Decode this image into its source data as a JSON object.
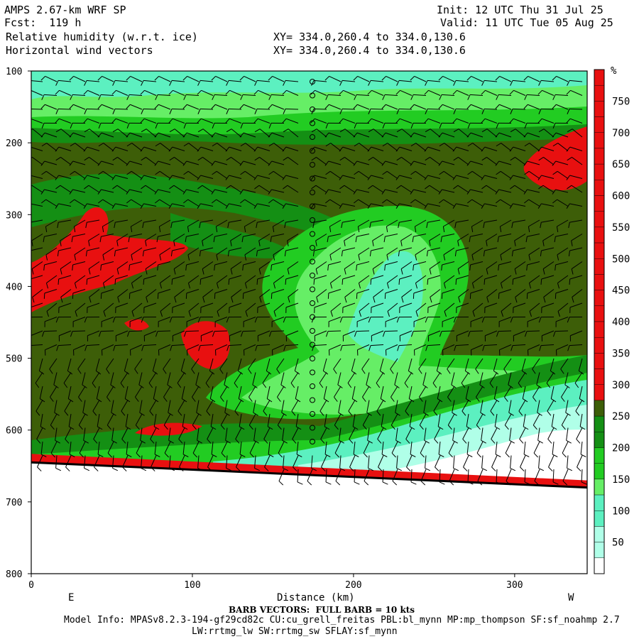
{
  "header": {
    "model_title": "AMPS 2.67-km WRF SP",
    "forecast": "Fcst:  119 h",
    "field1": "Relative humidity (w.r.t. ice)",
    "field2": "Horizontal wind vectors",
    "init": "Init: 12 UTC Thu 31 Jul 25",
    "valid": "Valid: 11 UTC Tue 05 Aug 25",
    "xy1": "XY= 334.0,260.4 to 334.0,130.6",
    "xy2": "XY= 334.0,260.4 to 334.0,130.6"
  },
  "footer": {
    "barb_note": "BARB VECTORS:  FULL BARB = 10 kts",
    "model_info": "Model Info: MPASv8.2.3-194-gf29cd82c CU:cu_grell_freitas PBL:bl_mynn MP:mp_thompson SF:sf_noahmp 2.7",
    "model_info2": "LW:rrtmg_lw SW:rrtmg_sw SFLAY:sf_mynn"
  },
  "chart_data": {
    "type": "heatmap",
    "title": "Relative humidity (w.r.t. ice)",
    "xlabel": "Distance (km)",
    "ylabel": "",
    "x_direction_labels": [
      "E",
      "W"
    ],
    "xlim": [
      0,
      345
    ],
    "ylim": [
      800,
      100
    ],
    "x_ticks": [
      0,
      100,
      200,
      300
    ],
    "y_ticks": [
      100,
      200,
      300,
      400,
      500,
      600,
      700,
      800
    ],
    "colorbar_unit": "%",
    "colorbar_ticks": [
      50,
      100,
      150,
      200,
      250,
      300,
      350,
      400,
      450,
      500,
      550,
      600,
      650,
      700,
      750
    ],
    "colorbar_colors": {
      "very_dry": "#ffffff",
      "dry": "#b0ffe8",
      "aqua": "#5cf0c0",
      "light_green": "#66ee66",
      "green": "#22cc22",
      "dark_green": "#148f14",
      "olive": "#3d5e08",
      "red": "#e81010",
      "bright_red": "#ff2020",
      "dark_red": "#bb1010"
    },
    "terrain_pressure_left": 645,
    "terrain_pressure_right": 680,
    "series": [
      {
        "name": "Horizontal wind vectors"
      }
    ]
  }
}
